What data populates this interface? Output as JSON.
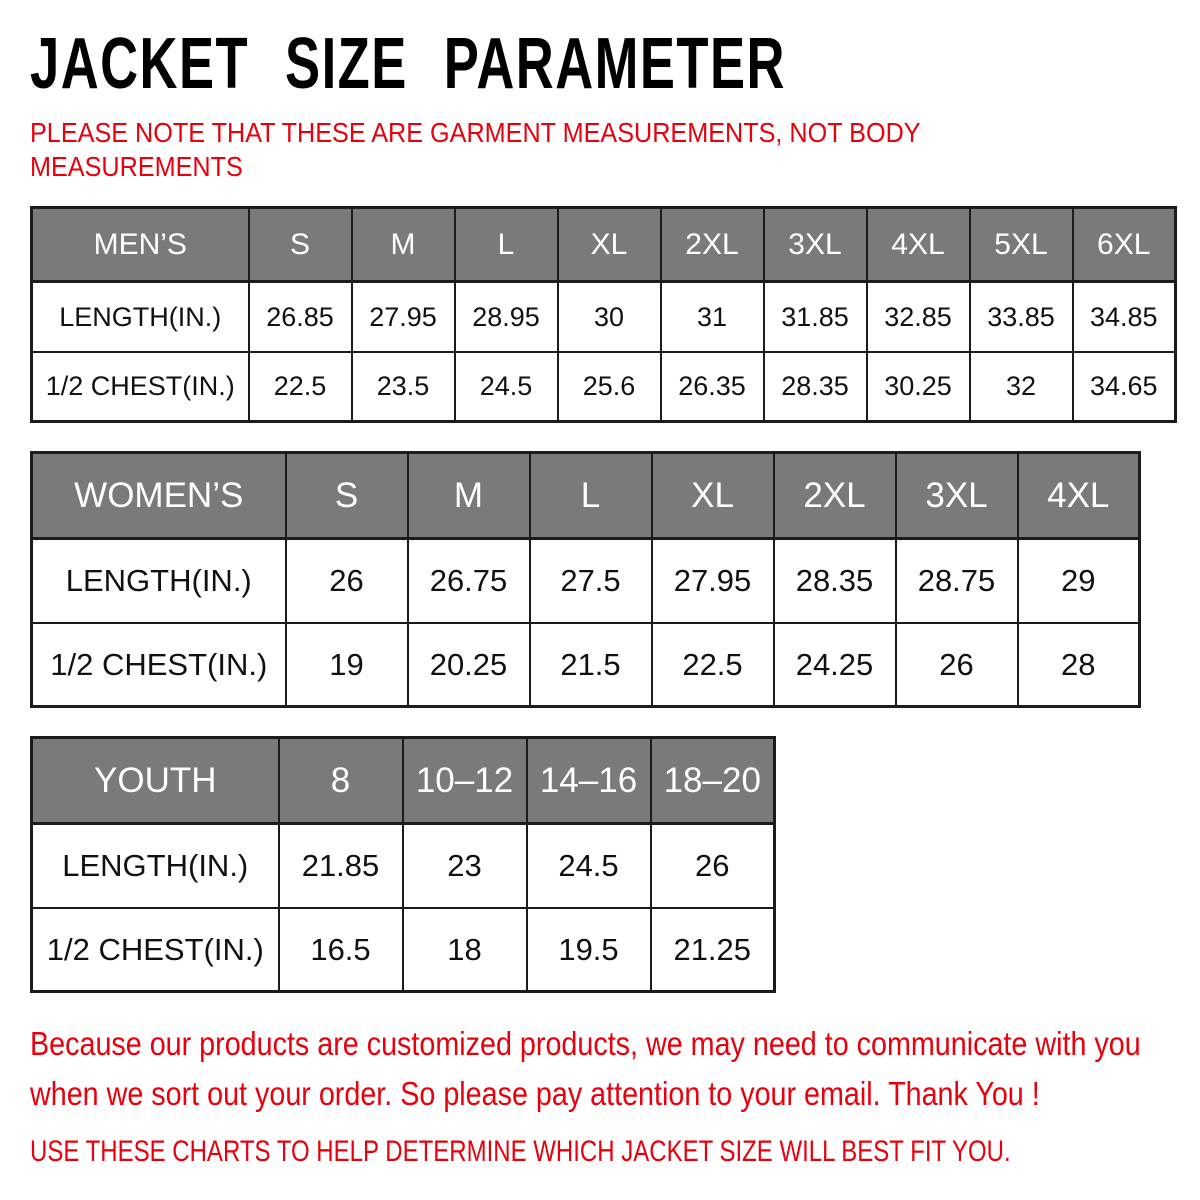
{
  "page": {
    "title": "JACKET SIZE PARAMETER",
    "note_lines": [
      "PLEASE NOTE THAT THESE ARE GARMENT MEASUREMENTS, NOT BODY",
      "MEASUREMENTS"
    ],
    "footer_lines": [
      "Because our products are customized products, we may need to communicate with you",
      "when we sort out your order. So please pay attention to your email. Thank You !"
    ],
    "advice_line": "USE THESE CHARTS TO HELP DETERMINE WHICH JACKET SIZE WILL BEST FIT YOU."
  },
  "colors": {
    "accent_red": "#e8000d",
    "header_gray": "#7a7a7a",
    "header_text": "#ffffff",
    "border_black": "#1c1c1c",
    "title_black": "#000000"
  },
  "tables": [
    {
      "id": "mens",
      "header": [
        "MEN’S",
        "S",
        "M",
        "L",
        "XL",
        "2XL",
        "3XL",
        "4XL",
        "5XL",
        "6XL"
      ],
      "rows": [
        {
          "label": "LENGTH(IN.)",
          "values": [
            "26.85",
            "27.95",
            "28.95",
            "30",
            "31",
            "31.85",
            "32.85",
            "33.85",
            "34.85"
          ]
        },
        {
          "label": "1/2 CHEST(IN.)",
          "values": [
            "22.5",
            "23.5",
            "24.5",
            "25.6",
            "26.35",
            "28.35",
            "30.25",
            "32",
            "34.65"
          ]
        }
      ]
    },
    {
      "id": "womens",
      "header": [
        "WOMEN’S",
        "S",
        "M",
        "L",
        "XL",
        "2XL",
        "3XL",
        "4XL"
      ],
      "rows": [
        {
          "label": "LENGTH(IN.)",
          "values": [
            "26",
            "26.75",
            "27.5",
            "27.95",
            "28.35",
            "28.75",
            "29"
          ]
        },
        {
          "label": "1/2 CHEST(IN.)",
          "values": [
            "19",
            "20.25",
            "21.5",
            "22.5",
            "24.25",
            "26",
            "28"
          ]
        }
      ]
    },
    {
      "id": "youth",
      "header": [
        "YOUTH",
        "8",
        "10–12",
        "14–16",
        "18–20"
      ],
      "rows": [
        {
          "label": "LENGTH(IN.)",
          "values": [
            "21.85",
            "23",
            "24.5",
            "26"
          ]
        },
        {
          "label": "1/2 CHEST(IN.)",
          "values": [
            "16.5",
            "18",
            "19.5",
            "21.25"
          ]
        }
      ]
    }
  ]
}
